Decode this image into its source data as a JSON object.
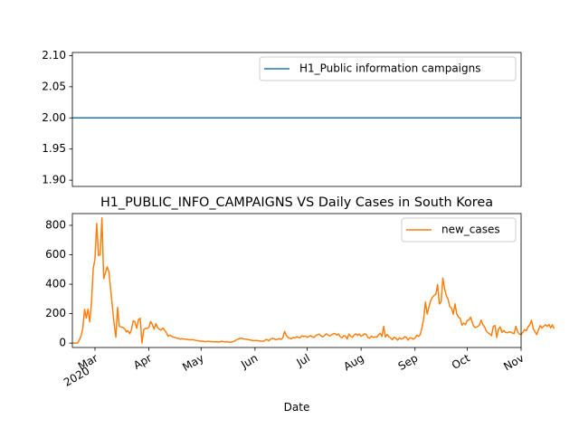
{
  "chart_data": [
    {
      "type": "line",
      "title": "",
      "xlabel": "",
      "ylabel": "",
      "ylim": [
        1.89,
        2.105
      ],
      "yticks": [
        "1.90",
        "1.95",
        "2.00",
        "2.05",
        "2.10"
      ],
      "ytick_values": [
        1.9,
        1.95,
        2.0,
        2.05,
        2.1
      ],
      "grid": false,
      "legend_position": "top-right",
      "series": [
        {
          "name": "H1_Public information campaigns",
          "color": "#1f77b4",
          "x": [
            "2020-02-17",
            "2020-11-01"
          ],
          "values": [
            2,
            2
          ]
        }
      ]
    },
    {
      "type": "line",
      "title": "H1_PUBLIC_INFO_CAMPAIGNS VS Daily Cases in South Korea",
      "xlabel": "Date",
      "ylabel": "",
      "ylim": [
        -30,
        880
      ],
      "yticks": [
        "0",
        "200",
        "400",
        "600",
        "800"
      ],
      "ytick_values": [
        0,
        200,
        400,
        600,
        800
      ],
      "xlim": [
        "2020-02-17",
        "2020-11-01"
      ],
      "xticks": [
        {
          "date": "2020-03-01",
          "label": "Mar",
          "label2": "2020"
        },
        {
          "date": "2020-04-01",
          "label": "Apr",
          "label2": ""
        },
        {
          "date": "2020-05-01",
          "label": "May",
          "label2": ""
        },
        {
          "date": "2020-06-01",
          "label": "Jun",
          "label2": ""
        },
        {
          "date": "2020-07-01",
          "label": "Jul",
          "label2": ""
        },
        {
          "date": "2020-08-01",
          "label": "Aug",
          "label2": ""
        },
        {
          "date": "2020-09-01",
          "label": "Sep",
          "label2": ""
        },
        {
          "date": "2020-10-01",
          "label": "Oct",
          "label2": ""
        },
        {
          "date": "2020-11-01",
          "label": "Nov",
          "label2": ""
        }
      ],
      "grid": false,
      "legend_position": "top-right",
      "series": [
        {
          "name": "new_cases",
          "color": "#ff7f0e",
          "start_date": "2020-02-17",
          "values": [
            0,
            0,
            0,
            0,
            20,
            50,
            100,
            229,
            170,
            231,
            145,
            280,
            509,
            570,
            813,
            595,
            600,
            851,
            438,
            476,
            518,
            483,
            367,
            248,
            131,
            40,
            242,
            114,
            110,
            107,
            98,
            76,
            84,
            64,
            93,
            152,
            146,
            100,
            160,
            168,
            0,
            90,
            100,
            100,
            106,
            147,
            125,
            94,
            132,
            105,
            94,
            89,
            103,
            88,
            72,
            47,
            54,
            47,
            40,
            39,
            34,
            32,
            27,
            30,
            28,
            27,
            25,
            23,
            22,
            24,
            21,
            18,
            17,
            14,
            13,
            13,
            10,
            10,
            12,
            11,
            10,
            9,
            8,
            9,
            7,
            10,
            12,
            9,
            8,
            10,
            6,
            6,
            9,
            12,
            20,
            26,
            30,
            34,
            30,
            28,
            27,
            24,
            22,
            19,
            16,
            18,
            17,
            16,
            14,
            13,
            12,
            22,
            24,
            15,
            28,
            32,
            30,
            22,
            27,
            30,
            25,
            36,
            79,
            52,
            38,
            32,
            30,
            39,
            34,
            44,
            38,
            37,
            49,
            44,
            48,
            39,
            45,
            51,
            43,
            38,
            52,
            57,
            61,
            47,
            42,
            51,
            63,
            56,
            48,
            56,
            63,
            65,
            55,
            62,
            44,
            35,
            51,
            47,
            28,
            61,
            46,
            39,
            54,
            63,
            53,
            62,
            46,
            53,
            63,
            58,
            37,
            34,
            48,
            39,
            42,
            40,
            56,
            67,
            45,
            113,
            41,
            59,
            43,
            34,
            23,
            40,
            33,
            20,
            36,
            28,
            30,
            43,
            40,
            20,
            36,
            34,
            27,
            33,
            54,
            45,
            58,
            103,
            166,
            279,
            197,
            246,
            288,
            311,
            324,
            332,
            397,
            266,
            280,
            441,
            371,
            323,
            299,
            248,
            238,
            195,
            267,
            198,
            176,
            168,
            121,
            136,
            125,
            153,
            158,
            176,
            136,
            110,
            106,
            113,
            121,
            156,
            126,
            110,
            82,
            70,
            61,
            50,
            114,
            119,
            38,
            95,
            110,
            73,
            86,
            73,
            70,
            75,
            75,
            69,
            64,
            114,
            77,
            61,
            58,
            73,
            91,
            84,
            110,
            125,
            155,
            97,
            76,
            58,
            91,
            119,
            103,
            114,
            125,
            113,
            127,
            103,
            124,
            97
          ]
        }
      ]
    }
  ]
}
